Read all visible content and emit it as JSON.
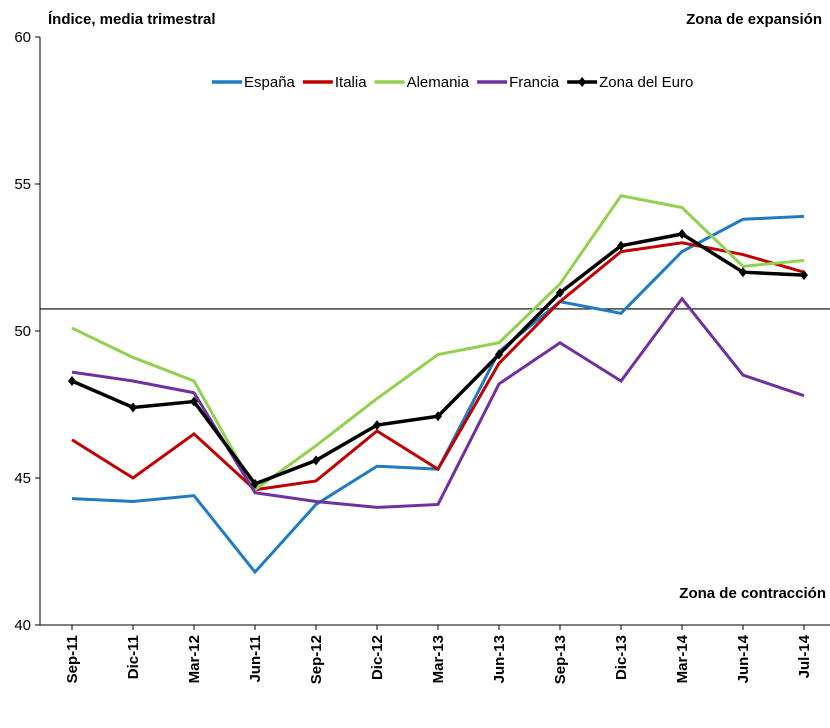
{
  "chart_data": {
    "type": "line",
    "title": "Índice, media trimestral",
    "annotations": [
      "Zona de expansión",
      "Zona de contracción"
    ],
    "categories": [
      "Sep-11",
      "Dic-11",
      "Mar-12",
      "Jun-11",
      "Sep-12",
      "Dic-12",
      "Mar-13",
      "Jun-13",
      "Sep-13",
      "Dic-13",
      "Mar-14",
      "Jun-14",
      "Jul-14"
    ],
    "series": [
      {
        "name": "España",
        "color": "#1f7bc4",
        "values": [
          44.3,
          44.2,
          44.4,
          41.8,
          44.1,
          45.4,
          45.3,
          49.3,
          51.0,
          50.6,
          52.7,
          53.8,
          53.9
        ]
      },
      {
        "name": "Italia",
        "color": "#c00000",
        "values": [
          46.3,
          45.0,
          46.5,
          44.6,
          44.9,
          46.6,
          45.3,
          48.9,
          51.0,
          52.7,
          53.0,
          52.6,
          52.0
        ]
      },
      {
        "name": "Alemania",
        "color": "#92d050",
        "values": [
          50.1,
          49.1,
          48.3,
          44.6,
          46.1,
          47.7,
          49.2,
          49.6,
          51.6,
          54.6,
          54.2,
          52.2,
          52.4
        ]
      },
      {
        "name": "Francia",
        "color": "#7030a0",
        "values": [
          48.6,
          48.3,
          47.9,
          44.5,
          44.2,
          44.0,
          44.1,
          48.2,
          49.6,
          48.3,
          51.1,
          48.5,
          47.8
        ]
      },
      {
        "name": "Zona del Euro",
        "color": "#000000",
        "markers": true,
        "values": [
          48.3,
          47.4,
          47.6,
          44.8,
          45.6,
          46.8,
          47.1,
          49.2,
          51.3,
          52.9,
          53.3,
          52.0,
          51.9
        ]
      }
    ],
    "reference_line": 50.75,
    "ylim": [
      40,
      60
    ],
    "yticks": [
      40,
      45,
      50,
      55,
      60
    ],
    "legend": "top"
  }
}
